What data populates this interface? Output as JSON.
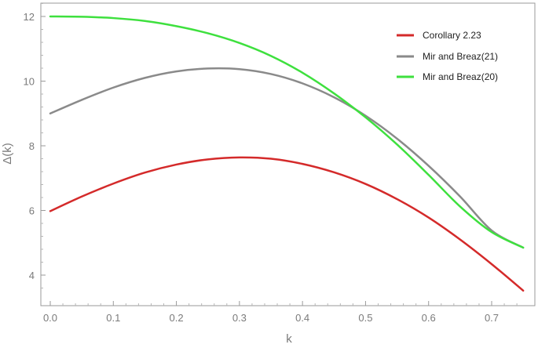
{
  "chart_data": {
    "type": "line",
    "xlabel": "k",
    "ylabel": "Δ(k)",
    "xlim": [
      0.0,
      0.75
    ],
    "ylim": [
      3.2,
      12.4
    ],
    "xticks": [
      "0.0",
      "0.1",
      "0.2",
      "0.3",
      "0.4",
      "0.5",
      "0.6",
      "0.7"
    ],
    "yticks": [
      "4",
      "6",
      "8",
      "10",
      "12"
    ],
    "grid": false,
    "legend_position": "top-right",
    "series": [
      {
        "name": "Corollary 2.23",
        "color": "#d42a2a",
        "x": [
          0.0,
          0.05,
          0.1,
          0.15,
          0.2,
          0.25,
          0.3,
          0.35,
          0.4,
          0.45,
          0.5,
          0.55,
          0.6,
          0.65,
          0.7,
          0.75
        ],
        "values": [
          5.98,
          6.43,
          6.83,
          7.17,
          7.42,
          7.58,
          7.64,
          7.6,
          7.44,
          7.18,
          6.82,
          6.35,
          5.78,
          5.1,
          4.34,
          3.52
        ]
      },
      {
        "name": "Mir and Breaz(21)",
        "color": "#8a8a8a",
        "x": [
          0.0,
          0.05,
          0.1,
          0.15,
          0.2,
          0.25,
          0.3,
          0.35,
          0.4,
          0.45,
          0.5,
          0.55,
          0.6,
          0.65,
          0.7,
          0.75
        ],
        "values": [
          9.0,
          9.42,
          9.8,
          10.1,
          10.3,
          10.39,
          10.37,
          10.22,
          9.93,
          9.5,
          8.93,
          8.22,
          7.38,
          6.43,
          5.38,
          4.85
        ]
      },
      {
        "name": "Mir and Breaz(20)",
        "color": "#3ee03e",
        "x": [
          0.0,
          0.05,
          0.1,
          0.15,
          0.2,
          0.25,
          0.3,
          0.35,
          0.4,
          0.45,
          0.5,
          0.55,
          0.6,
          0.65,
          0.7,
          0.75
        ],
        "values": [
          12.0,
          11.99,
          11.95,
          11.86,
          11.7,
          11.48,
          11.18,
          10.78,
          10.26,
          9.62,
          8.88,
          8.04,
          7.1,
          6.12,
          5.33,
          4.85
        ]
      }
    ]
  }
}
